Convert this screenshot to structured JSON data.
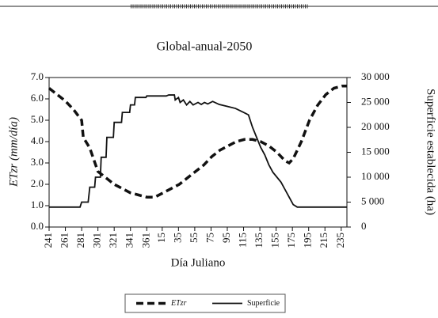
{
  "chart_data": {
    "type": "line",
    "title": "Global-anual-2050",
    "x_label": "Día Juliano",
    "y_label": "ETzr (mm/día)",
    "y2_label": "Superficie establecida (ha)",
    "xlim": [
      241,
      607
    ],
    "xticks": [
      241,
      261,
      281,
      301,
      321,
      341,
      361,
      {
        "value": 380,
        "label": "15"
      },
      {
        "value": 400,
        "label": "35"
      },
      {
        "value": 420,
        "label": "55"
      },
      {
        "value": 440,
        "label": "75"
      },
      {
        "value": 460,
        "label": "95"
      },
      {
        "value": 480,
        "label": "115"
      },
      {
        "value": 500,
        "label": "135"
      },
      {
        "value": 520,
        "label": "155"
      },
      {
        "value": 540,
        "label": "175"
      },
      {
        "value": 560,
        "label": "195"
      },
      {
        "value": 580,
        "label": "215"
      },
      {
        "value": 600,
        "label": "235"
      }
    ],
    "ylim": [
      0,
      7
    ],
    "yticks": [
      {
        "value": 0,
        "label": "0.0"
      },
      {
        "value": 1,
        "label": "1.0"
      },
      {
        "value": 2,
        "label": "2.0"
      },
      {
        "value": 3,
        "label": "3.0"
      },
      {
        "value": 4,
        "label": "4.0"
      },
      {
        "value": 5,
        "label": "5.0"
      },
      {
        "value": 6,
        "label": "6.0"
      },
      {
        "value": 7,
        "label": "7.0"
      }
    ],
    "y2lim": [
      0,
      30000
    ],
    "y2ticks": [
      0,
      {
        "value": 5000,
        "label": "5 000"
      },
      {
        "value": 10000,
        "label": "10 000"
      },
      {
        "value": 15000,
        "label": "15 000"
      },
      {
        "value": 20000,
        "label": "20 000"
      },
      {
        "value": 25000,
        "label": "25 000"
      },
      {
        "value": 30000,
        "label": "30 000"
      }
    ],
    "legend": "bottom",
    "series": [
      {
        "name": "ETzr",
        "color": "#111111",
        "style": "dashed",
        "x": [
          241,
          251,
          261,
          271,
          281,
          283,
          291,
          301,
          311,
          321,
          331,
          341,
          351,
          361,
          371,
          381,
          391,
          401,
          411,
          421,
          431,
          441,
          451,
          461,
          471,
          481,
          491,
          501,
          511,
          521,
          531,
          536,
          541,
          551,
          561,
          571,
          581,
          591,
          601,
          607
        ],
        "values": [
          6.5,
          6.2,
          5.9,
          5.5,
          5.0,
          4.2,
          3.7,
          2.6,
          2.3,
          2.0,
          1.8,
          1.6,
          1.5,
          1.4,
          1.4,
          1.6,
          1.8,
          2.0,
          2.3,
          2.6,
          2.9,
          3.3,
          3.6,
          3.8,
          4.0,
          4.1,
          4.1,
          4.0,
          3.8,
          3.5,
          3.1,
          3.0,
          3.2,
          4.0,
          5.0,
          5.7,
          6.2,
          6.5,
          6.6,
          6.6
        ]
      },
      {
        "name": "Superficie",
        "color": "#111111",
        "style": "solid",
        "axis": "y2",
        "x": [
          241,
          279,
          281,
          289,
          291,
          297,
          298,
          304,
          305,
          311,
          312,
          320,
          321,
          330,
          331,
          340,
          341,
          346,
          347,
          360,
          361,
          385,
          388,
          395,
          396,
          400,
          402,
          406,
          410,
          414,
          418,
          424,
          428,
          432,
          436,
          442,
          450,
          460,
          470,
          480,
          486,
          491,
          496,
          501,
          506,
          511,
          516,
          521,
          526,
          531,
          536,
          541,
          546,
          607
        ],
        "values": [
          4000,
          4000,
          5000,
          5000,
          8000,
          8000,
          10000,
          10000,
          14000,
          14000,
          18000,
          18000,
          21000,
          21000,
          23000,
          23000,
          24500,
          24500,
          26000,
          26000,
          26300,
          26300,
          26500,
          26500,
          25500,
          26000,
          25000,
          25500,
          24500,
          25200,
          24500,
          25000,
          24600,
          25000,
          24700,
          25200,
          24600,
          24200,
          23800,
          23000,
          22500,
          20000,
          18000,
          16000,
          14500,
          12500,
          11000,
          10000,
          9000,
          7500,
          6000,
          4500,
          4000,
          4000
        ]
      }
    ]
  }
}
